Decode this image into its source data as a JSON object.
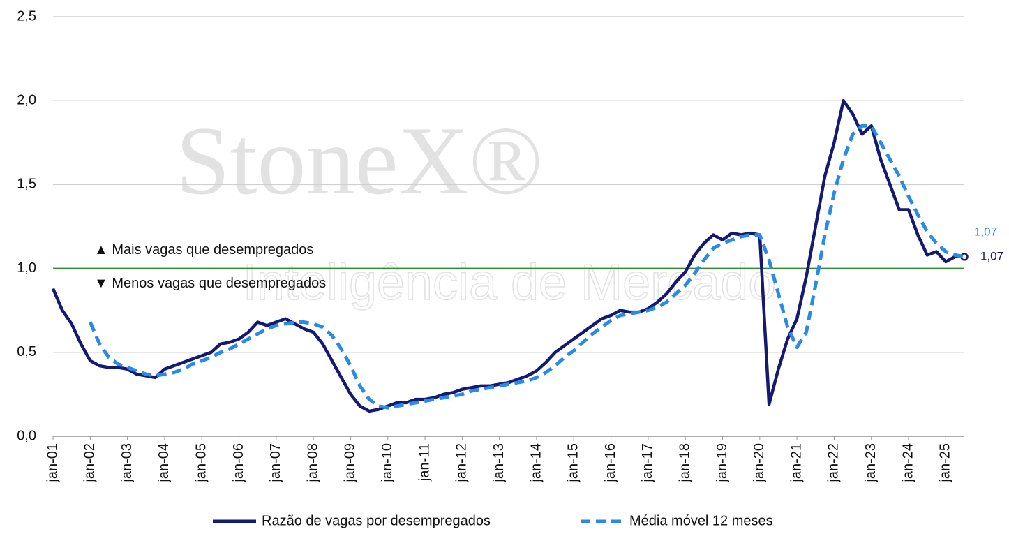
{
  "chart_data": {
    "type": "line",
    "watermark": [
      "StoneX®",
      "Inteligência de Mercado"
    ],
    "categories": [
      "jan-01",
      null,
      null,
      null,
      "jan-02",
      null,
      null,
      null,
      "jan-03",
      null,
      null,
      null,
      "jan-04",
      null,
      null,
      null,
      "jan-05",
      null,
      null,
      null,
      "jan-06",
      null,
      null,
      null,
      "jan-07",
      null,
      null,
      null,
      "jan-08",
      null,
      null,
      null,
      "jan-09",
      null,
      null,
      null,
      "jan-10",
      null,
      null,
      null,
      "jan-11",
      null,
      null,
      null,
      "jan-12",
      null,
      null,
      null,
      "jan-13",
      null,
      null,
      null,
      "jan-14",
      null,
      null,
      null,
      "jan-15",
      null,
      null,
      null,
      "jan-16",
      null,
      null,
      null,
      "jan-17",
      null,
      null,
      null,
      "jan-18",
      null,
      null,
      null,
      "jan-19",
      null,
      null,
      null,
      "jan-20",
      null,
      null,
      null,
      "jan-21",
      null,
      null,
      null,
      "jan-22",
      null,
      null,
      null,
      "jan-23",
      null,
      null,
      null,
      "jan-24",
      null,
      null,
      null,
      "jan-25",
      null,
      null
    ],
    "series": [
      {
        "name": "Razão de vagas por desempregados",
        "color": "#141a72",
        "dash": false,
        "last_value_label": "1,07",
        "values": [
          0.88,
          0.75,
          0.67,
          0.55,
          0.45,
          0.42,
          0.41,
          0.41,
          0.4,
          0.37,
          0.36,
          0.35,
          0.4,
          0.42,
          0.44,
          0.46,
          0.48,
          0.5,
          0.55,
          0.56,
          0.58,
          0.62,
          0.68,
          0.66,
          0.68,
          0.7,
          0.67,
          0.64,
          0.62,
          0.55,
          0.45,
          0.35,
          0.25,
          0.18,
          0.15,
          0.16,
          0.18,
          0.2,
          0.2,
          0.22,
          0.22,
          0.23,
          0.25,
          0.26,
          0.28,
          0.29,
          0.3,
          0.3,
          0.31,
          0.32,
          0.34,
          0.36,
          0.39,
          0.44,
          0.5,
          0.54,
          0.58,
          0.62,
          0.66,
          0.7,
          0.72,
          0.75,
          0.74,
          0.74,
          0.76,
          0.8,
          0.85,
          0.92,
          0.98,
          1.08,
          1.15,
          1.2,
          1.17,
          1.21,
          1.2,
          1.21,
          1.2,
          0.19,
          0.4,
          0.58,
          0.7,
          0.95,
          1.25,
          1.55,
          1.75,
          2.0,
          1.92,
          1.8,
          1.85,
          1.65,
          1.5,
          1.35,
          1.35,
          1.2,
          1.08,
          1.1,
          1.04,
          1.07,
          1.07
        ]
      },
      {
        "name": "Média móvel 12 meses",
        "color": "#2a8ae8",
        "dash": true,
        "last_value_label": "1,07",
        "values": [
          null,
          null,
          null,
          null,
          0.68,
          0.55,
          0.47,
          0.43,
          0.41,
          0.39,
          0.37,
          0.36,
          0.37,
          0.38,
          0.4,
          0.43,
          0.45,
          0.47,
          0.5,
          0.52,
          0.55,
          0.58,
          0.61,
          0.64,
          0.66,
          0.67,
          0.68,
          0.68,
          0.67,
          0.65,
          0.6,
          0.52,
          0.42,
          0.3,
          0.22,
          0.18,
          0.17,
          0.18,
          0.19,
          0.2,
          0.21,
          0.22,
          0.23,
          0.24,
          0.25,
          0.27,
          0.28,
          0.29,
          0.3,
          0.31,
          0.32,
          0.33,
          0.35,
          0.38,
          0.42,
          0.47,
          0.51,
          0.56,
          0.61,
          0.65,
          0.69,
          0.72,
          0.73,
          0.74,
          0.75,
          0.77,
          0.8,
          0.85,
          0.9,
          0.97,
          1.05,
          1.12,
          1.15,
          1.17,
          1.19,
          1.2,
          1.2,
          1.05,
          0.85,
          0.65,
          0.53,
          0.62,
          0.9,
          1.2,
          1.45,
          1.65,
          1.8,
          1.85,
          1.85,
          1.75,
          1.65,
          1.55,
          1.43,
          1.32,
          1.22,
          1.15,
          1.1,
          1.08,
          1.07
        ]
      }
    ],
    "reference_line": {
      "value": 1.0,
      "color": "#2e8b2e"
    },
    "annotations": [
      {
        "text": "▲ Mais vagas que desempregados",
        "value": 1.1
      },
      {
        "text": "▼ Menos vagas que desempregados",
        "value": 0.9
      }
    ],
    "ylim": [
      0,
      2.5
    ],
    "yticks": [
      {
        "value": 0,
        "label": "0,0"
      },
      {
        "value": 0.5,
        "label": "0,5"
      },
      {
        "value": 1,
        "label": "1,0"
      },
      {
        "value": 1.5,
        "label": "1,5"
      },
      {
        "value": 2,
        "label": "2,0"
      },
      {
        "value": 2.5,
        "label": "2,5"
      }
    ],
    "grid": true,
    "legend": "bottom"
  }
}
